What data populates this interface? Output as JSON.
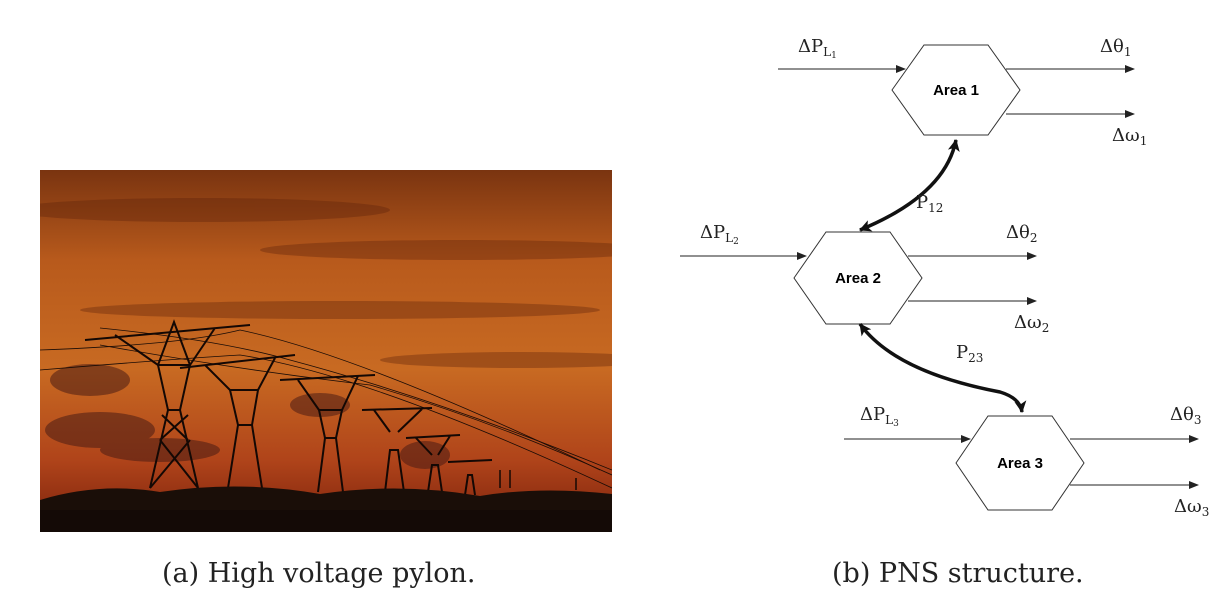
{
  "captions": {
    "a": "(a) High voltage pylon.",
    "b": "(b) PNS structure."
  },
  "diagram": {
    "areas": [
      "Area 1",
      "Area 2",
      "Area 3"
    ],
    "inputs": [
      {
        "base": "ΔP",
        "sub": "L",
        "subsub": "1"
      },
      {
        "base": "ΔP",
        "sub": "L",
        "subsub": "2"
      },
      {
        "base": "ΔP",
        "sub": "L",
        "subsub": "3"
      }
    ],
    "outputs_theta": [
      {
        "base": "Δθ",
        "sub": "1"
      },
      {
        "base": "Δθ",
        "sub": "2"
      },
      {
        "base": "Δθ",
        "sub": "3"
      }
    ],
    "outputs_omega": [
      {
        "base": "Δω",
        "sub": "1"
      },
      {
        "base": "Δω",
        "sub": "2"
      },
      {
        "base": "Δω",
        "sub": "3"
      }
    ],
    "links": [
      {
        "base": "P",
        "sub": "12"
      },
      {
        "base": "P",
        "sub": "23"
      }
    ]
  },
  "colors": {
    "sky_top": "#8a3a0e",
    "sky_mid": "#c8621a",
    "sky_low": "#a8320f",
    "ground": "#1a0e08"
  }
}
